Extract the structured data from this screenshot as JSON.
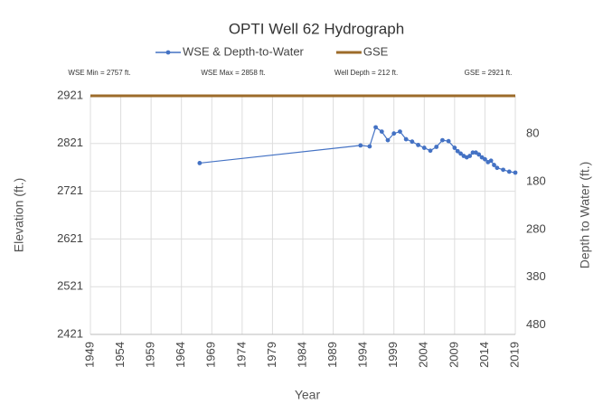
{
  "chart_data": {
    "type": "line",
    "title": "OPTI Well 62 Hydrograph",
    "annotations": [
      "WSE Min = 2757 ft.",
      "WSE Max = 2858 ft.",
      "Well Depth = 212 ft.",
      "GSE =  2921 ft."
    ],
    "xlabel": "Year",
    "ylabel": "Elevation (ft.)",
    "y2label": "Depth to Water (ft.)",
    "xlim": [
      1949,
      2019
    ],
    "xticks": [
      1949,
      1954,
      1959,
      1964,
      1969,
      1974,
      1979,
      1984,
      1989,
      1994,
      1999,
      2004,
      2009,
      2014,
      2019
    ],
    "ylim": [
      2421,
      2921
    ],
    "yticks": [
      2421,
      2521,
      2621,
      2721,
      2821,
      2921
    ],
    "y2lim": [
      0,
      500
    ],
    "y2_inverted": true,
    "y2ticks": [
      80,
      180,
      280,
      380,
      480
    ],
    "grid": true,
    "series": [
      {
        "name": "WSE & Depth-to-Water",
        "color": "#4472c4",
        "markers": true,
        "x": [
          1967,
          1993.5,
          1995,
          1996,
          1997,
          1998,
          1999,
          2000,
          2001,
          2002,
          2003,
          2004,
          2005,
          2006,
          2007,
          2008,
          2009,
          2009.5,
          2010,
          2010.5,
          2011,
          2011.5,
          2012,
          2012.5,
          2013,
          2013.5,
          2014,
          2014.5,
          2015,
          2015.5,
          2016,
          2017,
          2018,
          2019
        ],
        "values": [
          2780,
          2817,
          2815,
          2855,
          2846,
          2828,
          2842,
          2846,
          2830,
          2825,
          2818,
          2812,
          2806,
          2814,
          2828,
          2826,
          2812,
          2805,
          2800,
          2795,
          2792,
          2795,
          2802,
          2802,
          2798,
          2792,
          2788,
          2782,
          2785,
          2776,
          2770,
          2766,
          2762,
          2760
        ]
      },
      {
        "name": "GSE",
        "color": "#9c6b2a",
        "markers": false,
        "x": [
          1949,
          2019
        ],
        "values": [
          2921,
          2921
        ]
      }
    ]
  }
}
